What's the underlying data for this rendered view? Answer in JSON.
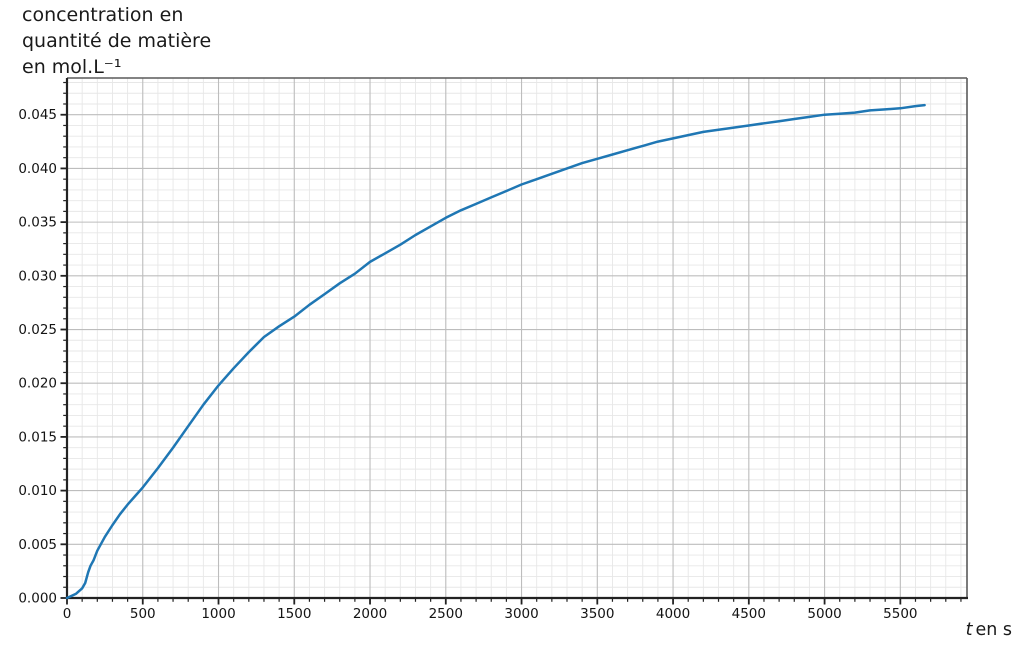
{
  "chart_data": {
    "type": "line",
    "title": "concentration en quantité de matière en mol.L⁻¹",
    "title_lines": [
      "concentration en",
      "quantité de matière",
      "en mol.L⁻¹"
    ],
    "xlabel": "t en s",
    "xlabel_var": "t",
    "xlabel_unit": "en s",
    "xlim": [
      0,
      5940
    ],
    "ylim": [
      0,
      0.04842
    ],
    "x_ticks": [
      0,
      500,
      1000,
      1500,
      2000,
      2500,
      3000,
      3500,
      4000,
      4500,
      5000,
      5500
    ],
    "x_tick_labels": [
      "0",
      "500",
      "1000",
      "1500",
      "2000",
      "2500",
      "3000",
      "3500",
      "4000",
      "4500",
      "5000",
      "5500"
    ],
    "y_ticks": [
      0,
      0.005,
      0.01,
      0.015,
      0.02,
      0.025,
      0.03,
      0.035,
      0.04,
      0.045
    ],
    "y_tick_labels": [
      "0.000",
      "0.005",
      "0.010",
      "0.015",
      "0.020",
      "0.025",
      "0.030",
      "0.035",
      "0.040",
      "0.045"
    ],
    "x_minor_step": 100,
    "y_minor_step": 0.001,
    "grid": "major+minor",
    "legend": "none",
    "colors": {
      "line": "#1f77b4",
      "grid_major": "#bdbdbd",
      "grid_minor": "#e7e7e7",
      "spine_dark": "#222222",
      "spine_light": "#5a5a5a",
      "text": "#141414"
    },
    "series": [
      {
        "name": "concentration en quantité de matière (mol.L⁻¹)",
        "points": [
          [
            0,
            0.0
          ],
          [
            60,
            0.0004
          ],
          [
            100,
            0.0009
          ],
          [
            120,
            0.0014
          ],
          [
            140,
            0.0024
          ],
          [
            155,
            0.003
          ],
          [
            175,
            0.0035
          ],
          [
            200,
            0.0044
          ],
          [
            250,
            0.0057
          ],
          [
            300,
            0.0068
          ],
          [
            350,
            0.0078
          ],
          [
            400,
            0.0087
          ],
          [
            450,
            0.0095
          ],
          [
            500,
            0.0103
          ],
          [
            600,
            0.0121
          ],
          [
            700,
            0.014
          ],
          [
            800,
            0.016
          ],
          [
            900,
            0.018
          ],
          [
            1000,
            0.0198
          ],
          [
            1100,
            0.0214
          ],
          [
            1200,
            0.0229
          ],
          [
            1300,
            0.0243
          ],
          [
            1400,
            0.0253
          ],
          [
            1500,
            0.0262
          ],
          [
            1600,
            0.0273
          ],
          [
            1700,
            0.0283
          ],
          [
            1800,
            0.0293
          ],
          [
            1900,
            0.0302
          ],
          [
            2000,
            0.0313
          ],
          [
            2100,
            0.0321
          ],
          [
            2200,
            0.0329
          ],
          [
            2300,
            0.0338
          ],
          [
            2400,
            0.0346
          ],
          [
            2500,
            0.0354
          ],
          [
            2600,
            0.0361
          ],
          [
            2700,
            0.0367
          ],
          [
            2800,
            0.0373
          ],
          [
            2900,
            0.0379
          ],
          [
            3000,
            0.0385
          ],
          [
            3100,
            0.039
          ],
          [
            3200,
            0.0395
          ],
          [
            3300,
            0.04
          ],
          [
            3400,
            0.0405
          ],
          [
            3500,
            0.0409
          ],
          [
            3600,
            0.0413
          ],
          [
            3700,
            0.0417
          ],
          [
            3800,
            0.0421
          ],
          [
            3900,
            0.0425
          ],
          [
            4000,
            0.0428
          ],
          [
            4100,
            0.0431
          ],
          [
            4200,
            0.0434
          ],
          [
            4300,
            0.0436
          ],
          [
            4400,
            0.0438
          ],
          [
            4500,
            0.044
          ],
          [
            4600,
            0.0442
          ],
          [
            4700,
            0.0444
          ],
          [
            4800,
            0.0446
          ],
          [
            4900,
            0.0448
          ],
          [
            5000,
            0.045
          ],
          [
            5100,
            0.0451
          ],
          [
            5200,
            0.0452
          ],
          [
            5300,
            0.0454
          ],
          [
            5400,
            0.0455
          ],
          [
            5500,
            0.0456
          ],
          [
            5600,
            0.0458
          ],
          [
            5660,
            0.0459
          ]
        ]
      }
    ]
  }
}
